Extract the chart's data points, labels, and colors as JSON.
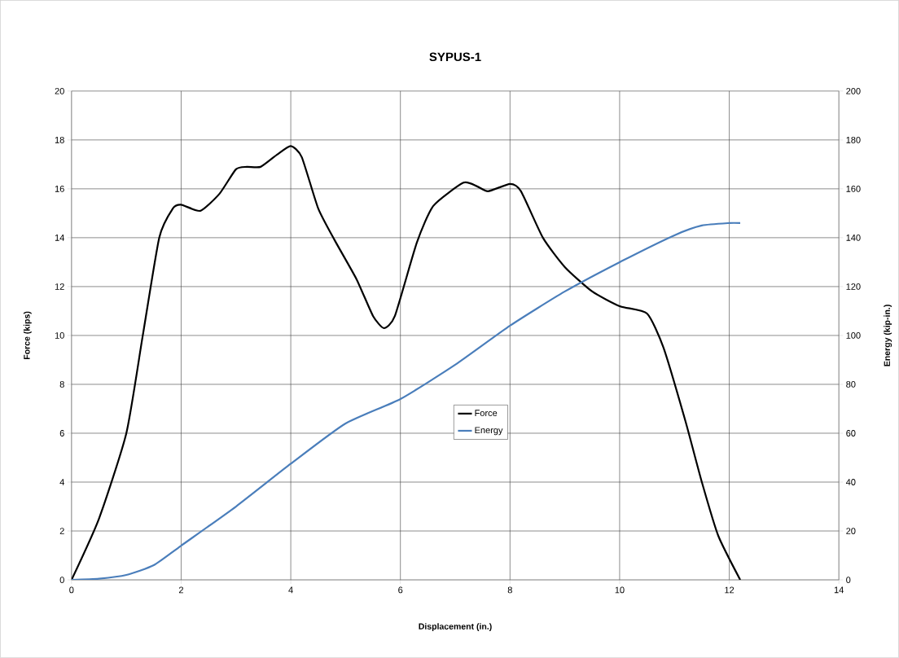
{
  "chart_data": {
    "type": "line",
    "title": "SYPUS-1",
    "xlabel": "Displacement (in.)",
    "ylabel": "Force (kips)",
    "y2label": "Energy (kip-in.)",
    "xlim": [
      0,
      14
    ],
    "xticks": [
      0,
      2,
      4,
      6,
      8,
      10,
      12,
      14
    ],
    "ylim": [
      0,
      20
    ],
    "yticks": [
      0,
      2,
      4,
      6,
      8,
      10,
      12,
      14,
      16,
      18,
      20
    ],
    "y2lim": [
      0,
      200
    ],
    "y2ticks": [
      0,
      20,
      40,
      60,
      80,
      100,
      120,
      140,
      160,
      180,
      200
    ],
    "grid": true,
    "legend": "center",
    "marker": "none",
    "line_style": "solid",
    "series": [
      {
        "name": "Force",
        "color": "#000000",
        "x": [
          0,
          0.5,
          1,
          1.3,
          1.6,
          1.85,
          2,
          2.35,
          2.7,
          3,
          3.2,
          3.45,
          3.75,
          4,
          4.2,
          4.5,
          4.8,
          5.2,
          5.5,
          5.7,
          5.9,
          6.3,
          6.6,
          7.15,
          7.4,
          7.6,
          8,
          8.2,
          8.6,
          9,
          9.5,
          10,
          10.5,
          10.8,
          11.2,
          11.5,
          11.8,
          12.2
        ],
        "values": [
          0,
          2.5,
          6,
          10,
          14,
          15.2,
          15.35,
          15.1,
          15.8,
          16.8,
          16.9,
          16.9,
          17.4,
          17.75,
          17.3,
          15.2,
          13.9,
          12.3,
          10.8,
          10.3,
          10.8,
          13.8,
          15.3,
          16.25,
          16.1,
          15.9,
          16.2,
          15.9,
          14,
          12.8,
          11.8,
          11.2,
          10.9,
          9.5,
          6.5,
          4,
          1.8,
          0
        ]
      },
      {
        "name": "Energy",
        "color": "#4a7ebb",
        "axis": "y2",
        "x": [
          0,
          0.5,
          1,
          1.5,
          2,
          3,
          4,
          5,
          6,
          7,
          8,
          9,
          10,
          11,
          11.5,
          12,
          12.2
        ],
        "values": [
          0,
          0.5,
          2,
          6,
          14,
          30,
          47.5,
          64,
          74,
          88,
          104,
          118,
          130,
          141,
          145,
          146,
          146
        ]
      }
    ]
  }
}
